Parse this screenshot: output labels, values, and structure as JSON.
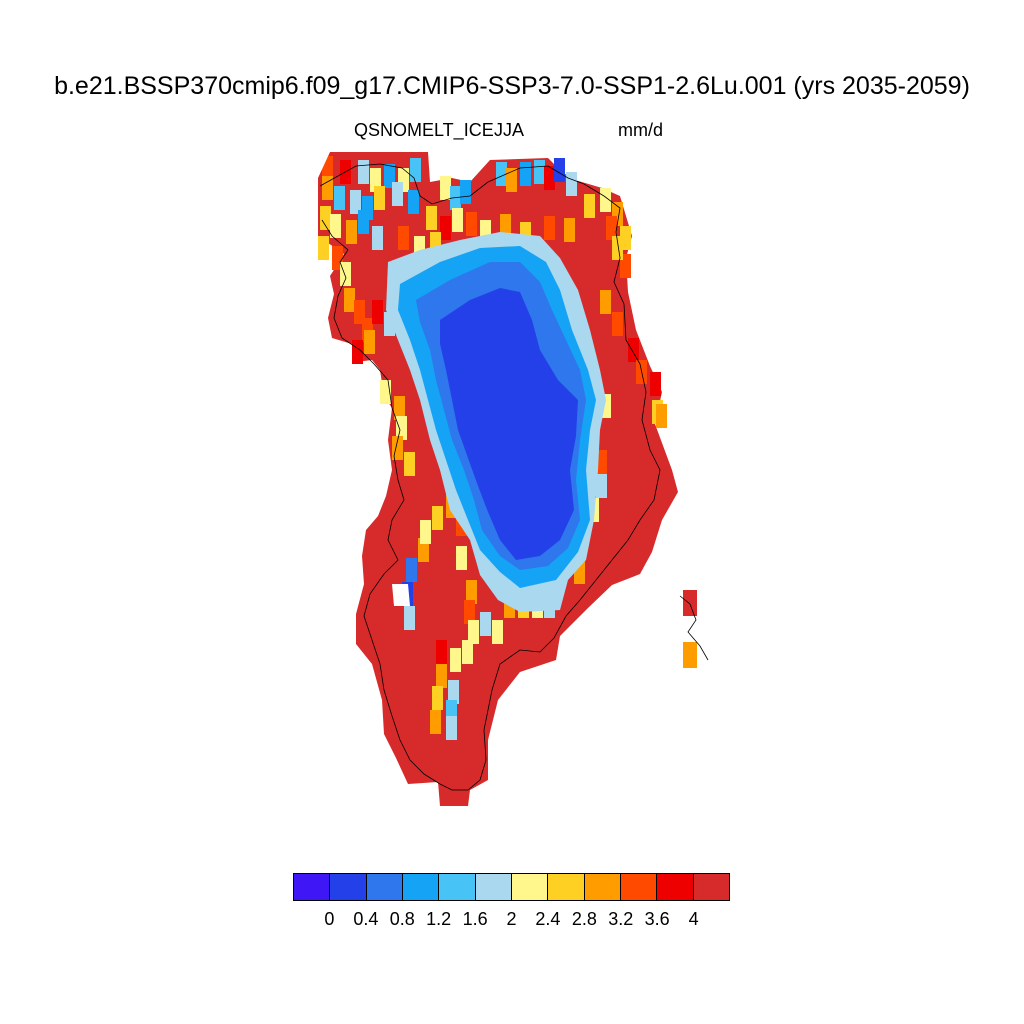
{
  "title": "b.e21.BSSP370cmip6.f09_g17.CMIP6-SSP3-7.0-SSP1-2.6Lu.001 (yrs 2035-2059)",
  "variable": "QSNOMELT_ICE",
  "season": "JJA",
  "units": "mm/d",
  "colorbar": {
    "colors": [
      "#3f16f6",
      "#2441e9",
      "#2f77ec",
      "#15a3f5",
      "#47c3f5",
      "#a9d8ef",
      "#fff68c",
      "#ffd024",
      "#ff9c00",
      "#ff4a00",
      "#ef0000",
      "#d72b2b"
    ],
    "labels": [
      "0",
      "0.4",
      "0.8",
      "1.2",
      "1.6",
      "2",
      "2.4",
      "2.8",
      "3.2",
      "3.6",
      "4"
    ]
  },
  "map": {
    "region": "Greenland",
    "field_description_levels": "values from 0 to >4 mm/d"
  }
}
